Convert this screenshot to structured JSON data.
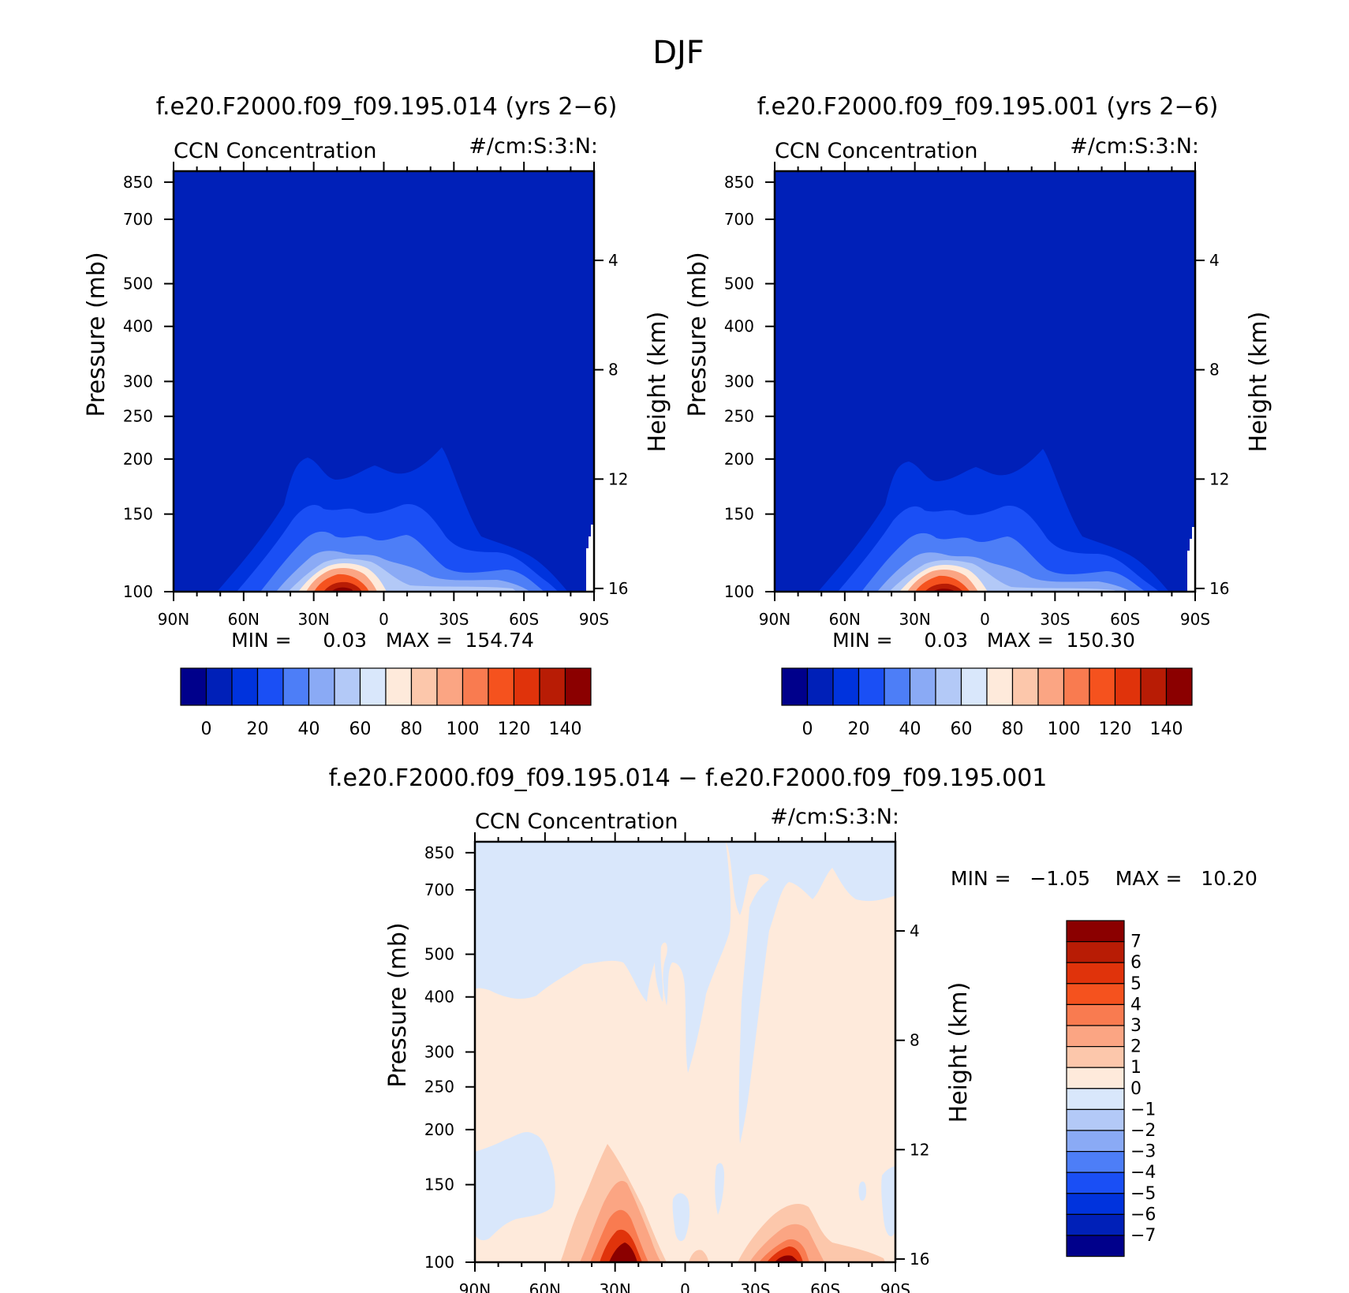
{
  "title": "DJF",
  "panels": [
    {
      "id": "p1",
      "title": "f.e20.F2000.f09_f09.195.014 (yrs 2−6)",
      "left_label": "CCN Concentration",
      "right_label": "#/cm:S:3:N:",
      "minmax": "MIN =     0.03   MAX =  154.74"
    },
    {
      "id": "p2",
      "title": "f.e20.F2000.f09_f09.195.001 (yrs 2−6)",
      "left_label": "CCN Concentration",
      "right_label": "#/cm:S:3:N:",
      "minmax": "MIN =     0.03   MAX =  150.30"
    },
    {
      "id": "p3",
      "title": "f.e20.F2000.f09_f09.195.014 − f.e20.F2000.f09_f09.195.001",
      "left_label": "CCN Concentration",
      "right_label": "#/cm:S:3:N:",
      "minmax": "MIN =   −1.05    MAX =   10.20"
    }
  ],
  "axes": {
    "ylabel": "Pressure (mb)",
    "y2label": "Height (km)",
    "pressure_ticks": [
      "100",
      "150",
      "200",
      "250",
      "300",
      "400",
      "500",
      "700",
      "850"
    ],
    "height_ticks": [
      "16",
      "12",
      "8",
      "4"
    ],
    "lat_ticks": [
      "90N",
      "60N",
      "30N",
      "0",
      "30S",
      "60S",
      "90S"
    ]
  },
  "colorbars": {
    "abs_labels": [
      "0",
      "20",
      "40",
      "60",
      "80",
      "100",
      "120",
      "140"
    ],
    "abs_colors": [
      "#00008b",
      "#0020b8",
      "#0033dd",
      "#1a4ff5",
      "#4d7ef7",
      "#8aaaf5",
      "#b3c9f7",
      "#d9e7fb",
      "#feeadb",
      "#fcc7ab",
      "#fba583",
      "#f97b50",
      "#f5521e",
      "#e0330b",
      "#b81c05",
      "#8b0000"
    ],
    "diff_labels": [
      "7",
      "6",
      "5",
      "4",
      "3",
      "2",
      "1",
      "0",
      "−1",
      "−2",
      "−3",
      "−4",
      "−5",
      "−6",
      "−7"
    ],
    "diff_colors": [
      "#8b0000",
      "#b81c05",
      "#e0330b",
      "#f5521e",
      "#f97b50",
      "#fba583",
      "#fcc7ab",
      "#feeadb",
      "#d9e7fb",
      "#b3c9f7",
      "#8aaaf5",
      "#4d7ef7",
      "#1a4ff5",
      "#0033dd",
      "#0020b8",
      "#00008b"
    ]
  },
  "chart_data": [
    {
      "type": "contour",
      "panel": "p1",
      "title": "f.e20.F2000.f09_f09.195.014 (yrs 2−6)",
      "variable": "CCN Concentration",
      "units": "#/cm:S:3:N:",
      "xlabel": "",
      "ylabel": "Pressure (mb)",
      "y2label": "Height (km)",
      "x_range": [
        "90N",
        "90S"
      ],
      "y_range_mb": [
        100,
        900
      ],
      "min": 0.03,
      "max": 154.74,
      "peak_latitude": "~20N",
      "contour_levels": [
        0,
        10,
        20,
        30,
        40,
        50,
        60,
        70,
        80,
        90,
        100,
        110,
        120,
        130,
        140
      ]
    },
    {
      "type": "contour",
      "panel": "p2",
      "title": "f.e20.F2000.f09_f09.195.001 (yrs 2−6)",
      "variable": "CCN Concentration",
      "units": "#/cm:S:3:N:",
      "xlabel": "",
      "ylabel": "Pressure (mb)",
      "y2label": "Height (km)",
      "x_range": [
        "90N",
        "90S"
      ],
      "y_range_mb": [
        100,
        900
      ],
      "min": 0.03,
      "max": 150.3,
      "peak_latitude": "~20N",
      "contour_levels": [
        0,
        10,
        20,
        30,
        40,
        50,
        60,
        70,
        80,
        90,
        100,
        110,
        120,
        130,
        140
      ]
    },
    {
      "type": "contour",
      "panel": "p3",
      "title": "f.e20.F2000.f09_f09.195.014 − f.e20.F2000.f09_f09.195.001",
      "variable": "CCN Concentration",
      "units": "#/cm:S:3:N:",
      "xlabel": "",
      "ylabel": "Pressure (mb)",
      "y2label": "Height (km)",
      "x_range": [
        "90N",
        "90S"
      ],
      "y_range_mb": [
        100,
        900
      ],
      "min": -1.05,
      "max": 10.2,
      "contour_levels": [
        -7,
        -6,
        -5,
        -4,
        -3,
        -2,
        -1,
        0,
        1,
        2,
        3,
        4,
        5,
        6,
        7
      ],
      "features": [
        "positive maxima near surface at ~20N and ~40S",
        "weak negative values (0 to -1) aloft in NH and near equator"
      ]
    }
  ]
}
